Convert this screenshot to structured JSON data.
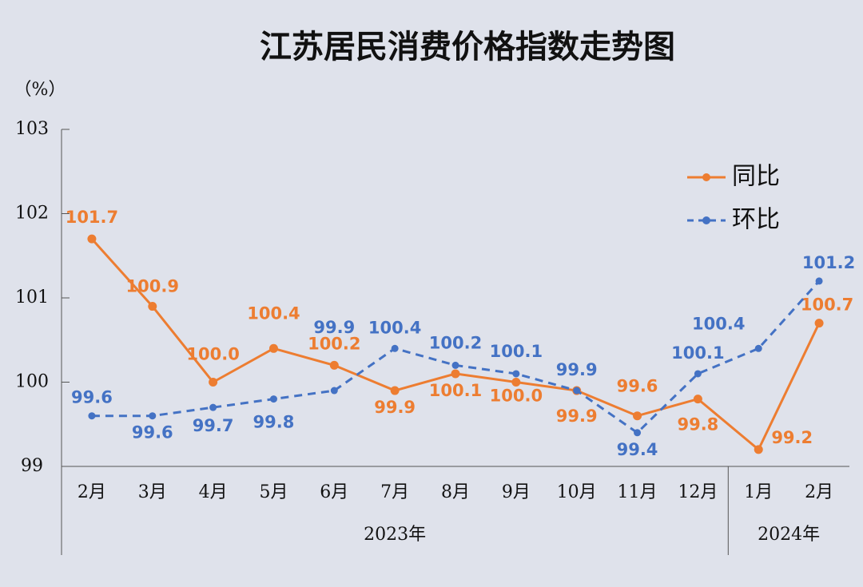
{
  "chart_data": {
    "type": "line",
    "title": "江苏居民消费价格指数走势图",
    "y_label": "（%）",
    "groups": [
      {
        "label": "2023年",
        "categories": [
          "2月",
          "3月",
          "4月",
          "5月",
          "6月",
          "7月",
          "8月",
          "9月",
          "10月",
          "11月",
          "12月"
        ]
      },
      {
        "label": "2024年",
        "categories": [
          "1月",
          "2月"
        ]
      }
    ],
    "ylim": [
      99,
      103
    ],
    "yticks": [
      99,
      100,
      101,
      102,
      103
    ],
    "legend": "upper right",
    "series": [
      {
        "name": "同比",
        "color": "#ed7d31",
        "dashed": false,
        "values": [
          101.7,
          100.9,
          100.0,
          100.4,
          100.2,
          99.9,
          100.1,
          100.0,
          99.9,
          99.6,
          99.8,
          99.2,
          100.7
        ],
        "value_labels": [
          "101.7",
          "100.9",
          "100.0",
          "100.4",
          "100.2",
          "99.9",
          "100.1",
          "100.0",
          "99.9",
          "99.6",
          "99.8",
          "99.2",
          "100.7"
        ]
      },
      {
        "name": "环比",
        "color": "#4472c4",
        "dashed": true,
        "values": [
          99.6,
          99.6,
          99.7,
          99.8,
          99.9,
          100.4,
          100.2,
          100.1,
          99.9,
          99.4,
          100.1,
          100.4,
          101.2
        ],
        "value_labels": [
          "99.6",
          "99.6",
          "99.7",
          "99.8",
          "99.9",
          "100.4",
          "100.2",
          "100.1",
          "99.9",
          "99.4",
          "100.1",
          "100.4",
          "101.2"
        ]
      }
    ]
  }
}
